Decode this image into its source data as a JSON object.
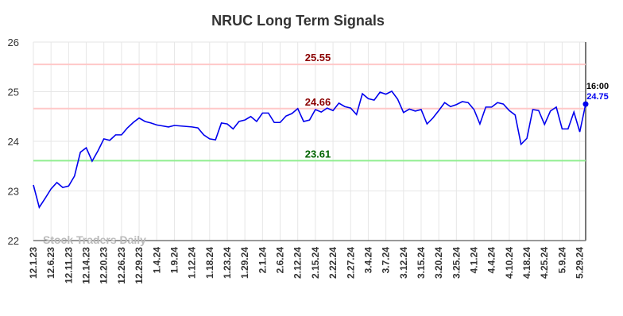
{
  "chart_data": {
    "type": "line",
    "title": "NRUC Long Term Signals",
    "watermark": "Stock Traders Daily",
    "categories": [
      "12.1.23",
      null,
      null,
      "12.6.23",
      null,
      null,
      "12.11.23",
      null,
      null,
      "12.14.23",
      null,
      null,
      "12.20.23",
      null,
      null,
      "12.26.23",
      null,
      null,
      "12.29.23",
      null,
      null,
      "1.4.24",
      null,
      null,
      "1.9.24",
      null,
      null,
      "1.12.24",
      null,
      null,
      "1.18.24",
      null,
      null,
      "1.23.24",
      null,
      null,
      "1.29.24",
      null,
      null,
      "2.1.24",
      null,
      null,
      "2.6.24",
      null,
      null,
      "2.12.24",
      null,
      null,
      "2.15.24",
      null,
      null,
      "2.22.24",
      null,
      null,
      "2.27.24",
      null,
      null,
      "3.4.24",
      null,
      null,
      "3.7.24",
      null,
      null,
      "3.12.24",
      null,
      null,
      "3.15.24",
      null,
      null,
      "3.20.24",
      null,
      null,
      "3.25.24",
      null,
      null,
      "4.1.24",
      null,
      null,
      "4.4.24",
      null,
      null,
      "4.10.24",
      null,
      null,
      "4.18.24",
      null,
      null,
      "4.25.24",
      null,
      null,
      "5.9.24",
      null,
      null,
      "5.29.24",
      null
    ],
    "values": [
      23.12,
      22.67,
      22.85,
      23.04,
      23.17,
      23.07,
      23.1,
      23.3,
      23.78,
      23.87,
      23.6,
      23.81,
      24.05,
      24.02,
      24.13,
      24.13,
      24.27,
      24.38,
      24.47,
      24.4,
      24.37,
      24.33,
      24.31,
      24.29,
      24.32,
      24.31,
      24.3,
      24.29,
      24.27,
      24.13,
      24.05,
      24.03,
      24.37,
      24.35,
      24.25,
      24.4,
      24.43,
      24.5,
      24.4,
      24.57,
      24.57,
      24.38,
      24.38,
      24.51,
      24.56,
      24.66,
      24.4,
      24.43,
      24.64,
      24.59,
      24.67,
      24.62,
      24.77,
      24.7,
      24.67,
      24.54,
      24.96,
      24.86,
      24.83,
      24.99,
      24.95,
      25.01,
      24.85,
      24.58,
      24.65,
      24.61,
      24.64,
      24.35,
      24.47,
      24.62,
      24.78,
      24.7,
      24.74,
      24.8,
      24.78,
      24.64,
      24.35,
      24.69,
      24.69,
      24.78,
      24.75,
      24.62,
      24.53,
      23.94,
      24.06,
      24.64,
      24.62,
      24.34,
      24.61,
      24.69,
      24.25,
      24.25,
      24.59,
      24.19,
      24.75
    ],
    "color": "#0000ee",
    "last_time": "16:00",
    "reference_lines": [
      {
        "value": 25.55,
        "color": "#ffc8c8",
        "label_color": "#8b0000"
      },
      {
        "value": 24.66,
        "color": "#ffc8c8",
        "label_color": "#8b0000"
      },
      {
        "value": 23.61,
        "color": "#90ee90",
        "label_color": "#006400"
      }
    ],
    "ylim": [
      22,
      26
    ],
    "yticks": [
      22,
      23,
      24,
      25,
      26
    ],
    "grid": true
  }
}
